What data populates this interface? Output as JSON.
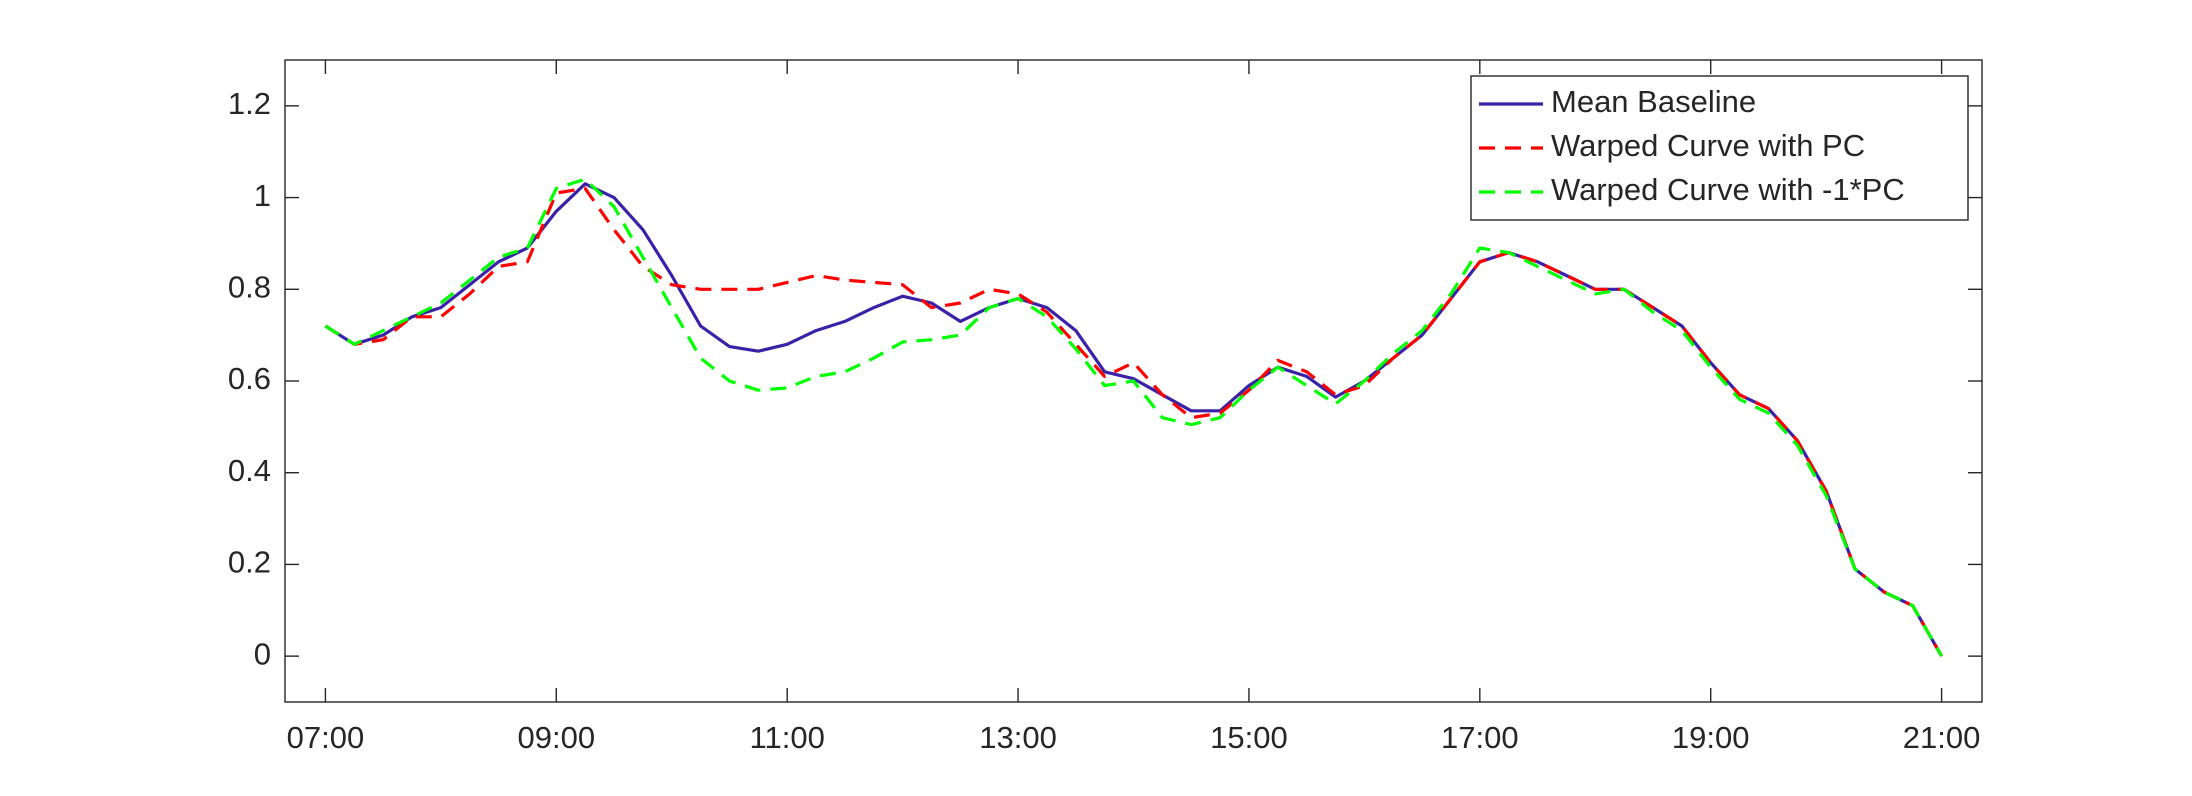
{
  "chart_data": {
    "type": "line",
    "x": [
      7,
      7.25,
      7.5,
      7.75,
      8,
      8.25,
      8.5,
      8.75,
      9,
      9.25,
      9.5,
      9.75,
      10,
      10.25,
      10.5,
      10.75,
      11,
      11.25,
      11.5,
      11.75,
      12,
      12.25,
      12.5,
      12.75,
      13,
      13.25,
      13.5,
      13.75,
      14,
      14.25,
      14.5,
      14.75,
      15,
      15.25,
      15.5,
      15.75,
      16,
      16.25,
      16.5,
      16.75,
      17,
      17.25,
      17.5,
      17.75,
      18,
      18.25,
      18.5,
      18.75,
      19,
      19.25,
      19.5,
      19.75,
      20,
      20.25,
      20.5,
      20.75,
      21
    ],
    "series": [
      {
        "name": "Mean Baseline",
        "color": "#3a22a8",
        "dash": "solid",
        "values": [
          0.72,
          0.68,
          0.7,
          0.74,
          0.76,
          0.81,
          0.86,
          0.89,
          0.97,
          1.03,
          1.0,
          0.93,
          0.83,
          0.72,
          0.675,
          0.665,
          0.68,
          0.71,
          0.73,
          0.76,
          0.785,
          0.77,
          0.73,
          0.76,
          0.78,
          0.76,
          0.71,
          0.62,
          0.605,
          0.57,
          0.535,
          0.535,
          0.59,
          0.63,
          0.61,
          0.565,
          0.6,
          0.65,
          0.7,
          0.78,
          0.86,
          0.88,
          0.86,
          0.83,
          0.8,
          0.8,
          0.76,
          0.72,
          0.64,
          0.57,
          0.54,
          0.47,
          0.36,
          0.19,
          0.14,
          0.11,
          0.0
        ]
      },
      {
        "name": "Warped Curve with PC",
        "color": "#ff0000",
        "dash": "dashed",
        "values": [
          0.72,
          0.68,
          0.69,
          0.74,
          0.74,
          0.79,
          0.85,
          0.86,
          1.01,
          1.02,
          0.93,
          0.85,
          0.81,
          0.8,
          0.8,
          0.8,
          0.815,
          0.83,
          0.82,
          0.815,
          0.81,
          0.76,
          0.77,
          0.8,
          0.79,
          0.75,
          0.68,
          0.61,
          0.64,
          0.57,
          0.52,
          0.53,
          0.58,
          0.645,
          0.62,
          0.57,
          0.59,
          0.65,
          0.7,
          0.78,
          0.86,
          0.88,
          0.86,
          0.83,
          0.8,
          0.8,
          0.76,
          0.72,
          0.64,
          0.57,
          0.54,
          0.47,
          0.36,
          0.19,
          0.14,
          0.11,
          0.0
        ]
      },
      {
        "name": "Warped Curve with -1*PC",
        "color": "#00ff00",
        "dash": "dashed",
        "values": [
          0.72,
          0.68,
          0.71,
          0.74,
          0.77,
          0.82,
          0.87,
          0.89,
          1.02,
          1.04,
          0.98,
          0.87,
          0.76,
          0.65,
          0.6,
          0.58,
          0.585,
          0.61,
          0.62,
          0.65,
          0.685,
          0.69,
          0.7,
          0.76,
          0.78,
          0.74,
          0.67,
          0.59,
          0.6,
          0.52,
          0.505,
          0.52,
          0.58,
          0.63,
          0.59,
          0.55,
          0.6,
          0.66,
          0.71,
          0.79,
          0.89,
          0.88,
          0.85,
          0.82,
          0.79,
          0.8,
          0.75,
          0.71,
          0.63,
          0.56,
          0.53,
          0.46,
          0.35,
          0.19,
          0.14,
          0.11,
          0.0
        ]
      }
    ],
    "xlim": [
      6.65,
      21.35
    ],
    "xticks": [
      {
        "value": 7,
        "label": "07:00"
      },
      {
        "value": 9,
        "label": "09:00"
      },
      {
        "value": 11,
        "label": "11:00"
      },
      {
        "value": 13,
        "label": "13:00"
      },
      {
        "value": 15,
        "label": "15:00"
      },
      {
        "value": 17,
        "label": "17:00"
      },
      {
        "value": 19,
        "label": "19:00"
      },
      {
        "value": 21,
        "label": "21:00"
      }
    ],
    "ylim": [
      -0.1,
      1.3
    ],
    "yticks": [
      0,
      0.2,
      0.4,
      0.6,
      0.8,
      1,
      1.2
    ],
    "grid": false,
    "legend": "top-right"
  }
}
